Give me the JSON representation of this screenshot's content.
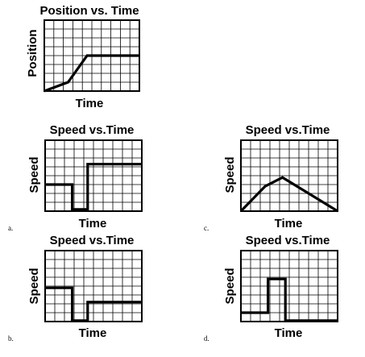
{
  "colors": {
    "line": "#000000",
    "background": "#ffffff"
  },
  "chart_data": [
    {
      "id": "position",
      "type": "line",
      "title": "Position vs. Time",
      "xlabel": "Time",
      "ylabel": "Position",
      "letter": "",
      "grid": true,
      "grid_divisions": [
        10,
        8
      ],
      "xlim": [
        0,
        10
      ],
      "ylim": [
        0,
        8
      ],
      "x": [
        0,
        2.5,
        4.5,
        10
      ],
      "y": [
        0,
        1,
        4,
        4
      ]
    },
    {
      "id": "a",
      "type": "line",
      "title": "Speed vs.Time",
      "xlabel": "Time",
      "ylabel": "Speed",
      "letter": "a.",
      "grid": true,
      "grid_divisions": [
        10,
        8
      ],
      "xlim": [
        0,
        10
      ],
      "ylim": [
        0,
        8
      ],
      "x": [
        0,
        2.8,
        2.8,
        4.4,
        4.4,
        10
      ],
      "y": [
        3,
        3,
        0.2,
        0.2,
        5.3,
        5.3
      ]
    },
    {
      "id": "c",
      "type": "line",
      "title": "Speed vs.Time",
      "xlabel": "Time",
      "ylabel": "Speed",
      "letter": "c.",
      "grid": true,
      "grid_divisions": [
        10,
        8
      ],
      "xlim": [
        0,
        10
      ],
      "ylim": [
        0,
        8
      ],
      "x": [
        0,
        2.5,
        4.3,
        10
      ],
      "y": [
        0,
        2.8,
        3.8,
        0
      ]
    },
    {
      "id": "b",
      "type": "line",
      "title": "Speed vs.Time",
      "xlabel": "Time",
      "ylabel": "Speed",
      "letter": "b.",
      "grid": true,
      "grid_divisions": [
        10,
        8
      ],
      "xlim": [
        0,
        10
      ],
      "ylim": [
        0,
        8
      ],
      "x": [
        0,
        2.8,
        2.8,
        4.4,
        4.4,
        10
      ],
      "y": [
        3.8,
        3.8,
        0.1,
        0.1,
        2.2,
        2.2
      ]
    },
    {
      "id": "d",
      "type": "line",
      "title": "Speed vs.Time",
      "xlabel": "Time",
      "ylabel": "Speed",
      "letter": "d.",
      "grid": true,
      "grid_divisions": [
        10,
        8
      ],
      "xlim": [
        0,
        10
      ],
      "ylim": [
        0,
        8
      ],
      "x": [
        0,
        2.8,
        2.8,
        4.6,
        4.6,
        10
      ],
      "y": [
        1,
        1,
        4.8,
        4.8,
        0.1,
        0.1
      ]
    }
  ]
}
